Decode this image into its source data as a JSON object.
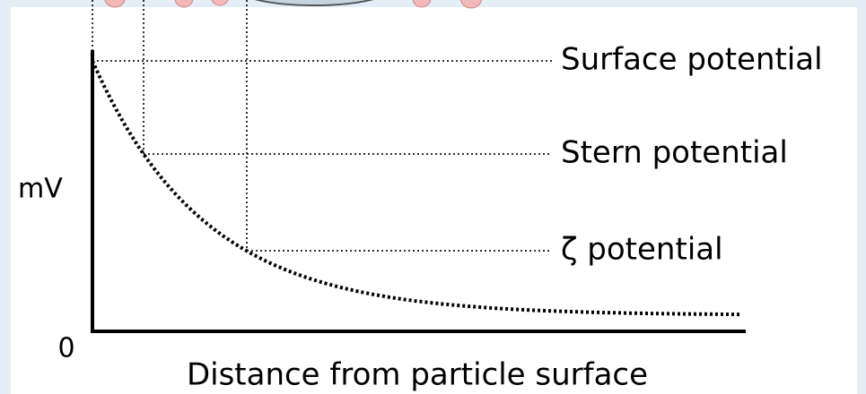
{
  "labels": {
    "surface": "Surface potential",
    "stern": "Stern potential",
    "zeta": "ζ potential"
  },
  "axes": {
    "y_label": "mV",
    "origin_label": "0",
    "x_label": "Distance from particle surface"
  }
}
